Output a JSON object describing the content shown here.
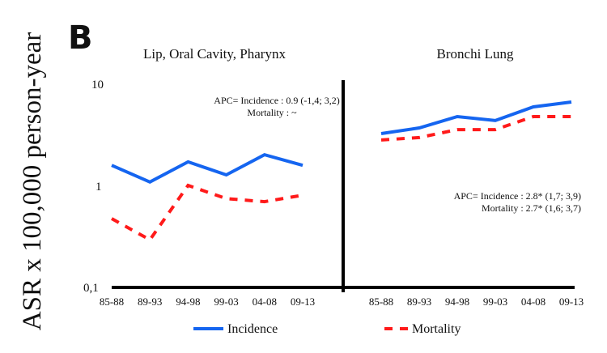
{
  "panel_label": "B",
  "colors": {
    "incidence": "#1565f0",
    "mortality": "#ff1a1a",
    "axis": "#000000"
  },
  "chart_data": {
    "type": "line",
    "ylabel": "ASR x 100,000 person-year",
    "yscale": "log",
    "ylim": [
      0.1,
      10
    ],
    "yticks": [
      {
        "value": 10,
        "label": "10"
      },
      {
        "value": 1,
        "label": "1"
      },
      {
        "value": 0.1,
        "label": "0,1"
      }
    ],
    "legend": {
      "placement": "bottom-center",
      "entries": [
        {
          "name": "Incidence",
          "style": "solid"
        },
        {
          "name": "Mortality",
          "style": "dashed"
        }
      ]
    },
    "panels": [
      {
        "title": "Lip,  Oral Cavity,  Pharynx",
        "categories": [
          "85-88",
          "89-93",
          "94-98",
          "99-03",
          "04-08",
          "09-13"
        ],
        "series": [
          {
            "name": "Incidence",
            "values": [
              1.58,
              1.08,
              1.71,
              1.27,
              2.01,
              1.58
            ]
          },
          {
            "name": "Mortality",
            "values": [
              0.47,
              0.29,
              1.0,
              0.74,
              0.69,
              0.8
            ]
          }
        ],
        "annotation": [
          "APC= Incidence : 0.9 (-1,4; 3,2)",
          "Mortality : ~"
        ],
        "annotation_placement": "top-right"
      },
      {
        "title": "Bronchi Lung",
        "categories": [
          "85-88",
          "89-93",
          "94-98",
          "99-03",
          "04-08",
          "09-13"
        ],
        "series": [
          {
            "name": "Incidence",
            "values": [
              3.25,
              3.7,
              4.79,
              4.37,
              5.97,
              6.67
            ]
          },
          {
            "name": "Mortality",
            "values": [
              2.81,
              2.97,
              3.56,
              3.56,
              4.79,
              4.79
            ]
          }
        ],
        "annotation": [
          "APC= Incidence : 2.8* (1,7; 3,9)",
          "Mortality : 2.7* (1,6; 3,7)"
        ],
        "annotation_placement": "middle-right"
      }
    ]
  }
}
